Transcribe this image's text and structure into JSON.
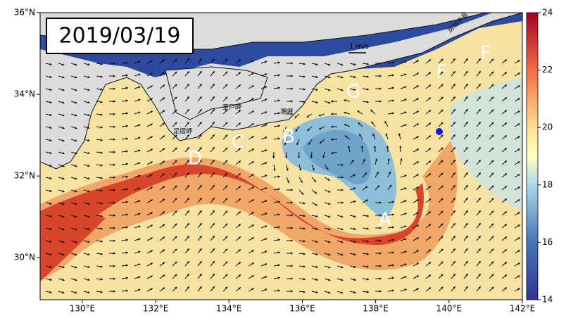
{
  "header": {
    "date": "2019/03/19"
  },
  "map": {
    "xlim": [
      128.85,
      142
    ],
    "ylim": [
      28.97,
      36
    ],
    "xticks": [
      {
        "value": 130,
        "label": "130°E"
      },
      {
        "value": 132,
        "label": "132°E"
      },
      {
        "value": 134,
        "label": "134°E"
      },
      {
        "value": 136,
        "label": "136°E"
      },
      {
        "value": 138,
        "label": "138°E"
      },
      {
        "value": 140,
        "label": "140°E"
      },
      {
        "value": 142,
        "label": "142°E"
      }
    ],
    "yticks": [
      {
        "value": 30,
        "label": "30°N"
      },
      {
        "value": 32,
        "label": "32°N"
      },
      {
        "value": 34,
        "label": "34°N"
      },
      {
        "value": 36,
        "label": "36°N"
      }
    ],
    "scale_label": "1 m/s",
    "letters": [
      "A",
      "B",
      "C",
      "D",
      "F",
      "F",
      "G"
    ],
    "places": [
      "室戸岬",
      "足摺岬",
      "潮岬",
      "房総半島"
    ]
  },
  "colorbar": {
    "lim": [
      14,
      24
    ],
    "ticks": [
      14,
      16,
      18,
      20,
      22,
      24
    ]
  }
}
